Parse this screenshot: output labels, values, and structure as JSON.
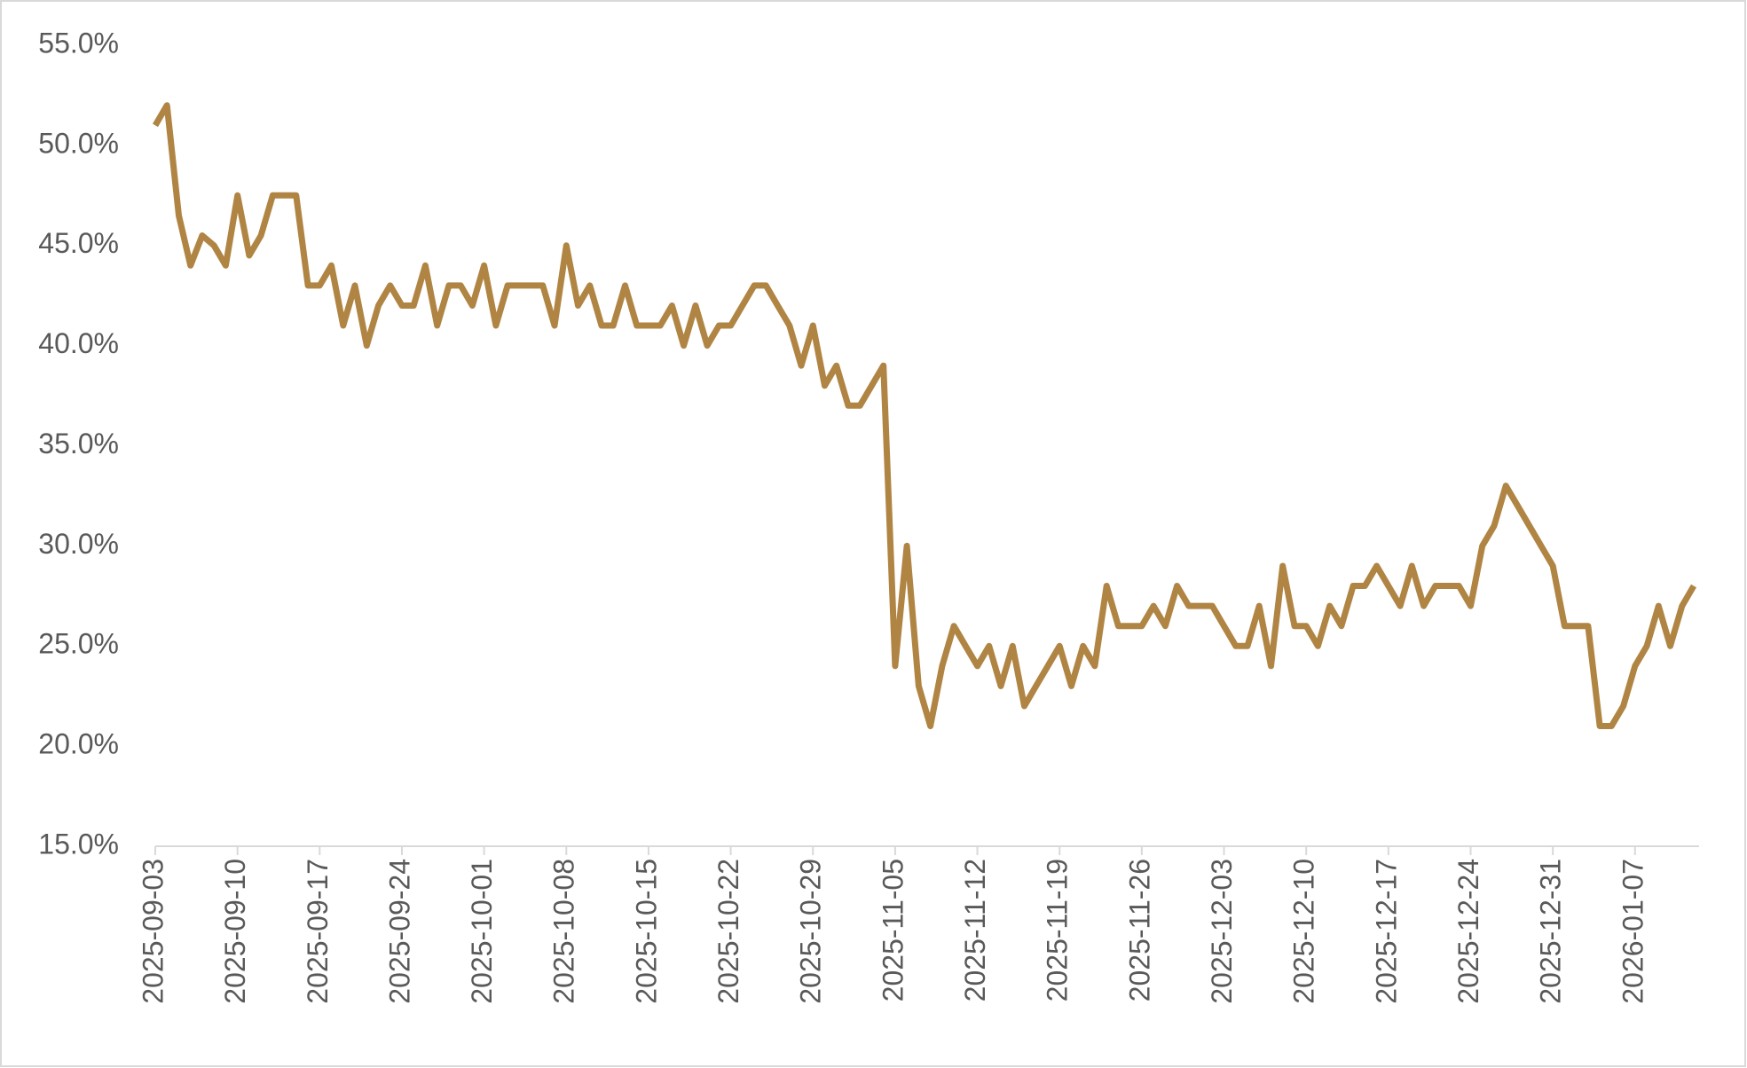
{
  "chart_data": {
    "type": "line",
    "color": "#b08544",
    "x": [
      "2025-09-03",
      "2025-09-04",
      "2025-09-05",
      "2025-09-06",
      "2025-09-07",
      "2025-09-08",
      "2025-09-09",
      "2025-09-10",
      "2025-09-11",
      "2025-09-12",
      "2025-09-13",
      "2025-09-14",
      "2025-09-15",
      "2025-09-16",
      "2025-09-17",
      "2025-09-18",
      "2025-09-19",
      "2025-09-20",
      "2025-09-21",
      "2025-09-22",
      "2025-09-23",
      "2025-09-24",
      "2025-09-25",
      "2025-09-26",
      "2025-09-27",
      "2025-09-28",
      "2025-09-29",
      "2025-09-30",
      "2025-10-01",
      "2025-10-02",
      "2025-10-03",
      "2025-10-04",
      "2025-10-05",
      "2025-10-06",
      "2025-10-07",
      "2025-10-08",
      "2025-10-09",
      "2025-10-10",
      "2025-10-11",
      "2025-10-12",
      "2025-10-13",
      "2025-10-14",
      "2025-10-15",
      "2025-10-16",
      "2025-10-17",
      "2025-10-18",
      "2025-10-19",
      "2025-10-20",
      "2025-10-21",
      "2025-10-22",
      "2025-10-23",
      "2025-10-24",
      "2025-10-25",
      "2025-10-26",
      "2025-10-27",
      "2025-10-28",
      "2025-10-29",
      "2025-10-30",
      "2025-10-31",
      "2025-11-01",
      "2025-11-02",
      "2025-11-03",
      "2025-11-04",
      "2025-11-05",
      "2025-11-06",
      "2025-11-07",
      "2025-11-08",
      "2025-11-09",
      "2025-11-10",
      "2025-11-11",
      "2025-11-12",
      "2025-11-13",
      "2025-11-14",
      "2025-11-15",
      "2025-11-16",
      "2025-11-17",
      "2025-11-18",
      "2025-11-19",
      "2025-11-20",
      "2025-11-21",
      "2025-11-22",
      "2025-11-23",
      "2025-11-24",
      "2025-11-25",
      "2025-11-26",
      "2025-11-27",
      "2025-11-28",
      "2025-11-29",
      "2025-11-30",
      "2025-12-01",
      "2025-12-02",
      "2025-12-03",
      "2025-12-04",
      "2025-12-05",
      "2025-12-06",
      "2025-12-07",
      "2025-12-08",
      "2025-12-09",
      "2025-12-10",
      "2025-12-11",
      "2025-12-12",
      "2025-12-13",
      "2025-12-14",
      "2025-12-15",
      "2025-12-16",
      "2025-12-17",
      "2025-12-18",
      "2025-12-19",
      "2025-12-20",
      "2025-12-21",
      "2025-12-22",
      "2025-12-23",
      "2025-12-24",
      "2025-12-25",
      "2025-12-26",
      "2025-12-27",
      "2025-12-28",
      "2025-12-29",
      "2025-12-30",
      "2025-12-31",
      "2026-01-01",
      "2026-01-02",
      "2026-01-03",
      "2026-01-04",
      "2026-01-05",
      "2026-01-06",
      "2026-01-07",
      "2026-01-08",
      "2026-01-09",
      "2026-01-10",
      "2026-01-11",
      "2026-01-12"
    ],
    "values": [
      51,
      52,
      46.5,
      44,
      45.5,
      45,
      44,
      47.5,
      44.5,
      45.5,
      47.5,
      47.5,
      47.5,
      43,
      43,
      44,
      41,
      43,
      40,
      42,
      43,
      42,
      42,
      44,
      41,
      43,
      43,
      42,
      44,
      41,
      43,
      43,
      43,
      43,
      41,
      45,
      42,
      43,
      41,
      41,
      43,
      41,
      41,
      41,
      42,
      40,
      42,
      40,
      41,
      41,
      42,
      43,
      43,
      42,
      41,
      39,
      41,
      38,
      39,
      37,
      37,
      38,
      39,
      24,
      30,
      23,
      21,
      24,
      26,
      25,
      24,
      25,
      23,
      25,
      22,
      23,
      24,
      25,
      23,
      25,
      24,
      28,
      26,
      26,
      26,
      27,
      26,
      28,
      27,
      27,
      27,
      26,
      25,
      25,
      27,
      24,
      29,
      26,
      26,
      25,
      27,
      26,
      28,
      28,
      29,
      28,
      27,
      29,
      27,
      28,
      28,
      28,
      27,
      30,
      31,
      33,
      32,
      31,
      30,
      29,
      26,
      26,
      26,
      21,
      21,
      22,
      24,
      25,
      27,
      25,
      27,
      28
    ],
    "ylim": [
      15,
      55
    ],
    "yticks": [
      {
        "value": 15,
        "label": "15.0%"
      },
      {
        "value": 20,
        "label": "20.0%"
      },
      {
        "value": 25,
        "label": "25.0%"
      },
      {
        "value": 30,
        "label": "30.0%"
      },
      {
        "value": 35,
        "label": "35.0%"
      },
      {
        "value": 40,
        "label": "40.0%"
      },
      {
        "value": 45,
        "label": "45.0%"
      },
      {
        "value": 50,
        "label": "50.0%"
      },
      {
        "value": 55,
        "label": "55.0%"
      }
    ],
    "xticks": [
      "2025-09-03",
      "2025-09-10",
      "2025-09-17",
      "2025-09-24",
      "2025-10-01",
      "2025-10-08",
      "2025-10-15",
      "2025-10-22",
      "2025-10-29",
      "2025-11-05",
      "2025-11-12",
      "2025-11-19",
      "2025-11-26",
      "2025-12-03",
      "2025-12-10",
      "2025-12-17",
      "2025-12-24",
      "2025-12-31",
      "2026-01-07"
    ]
  }
}
